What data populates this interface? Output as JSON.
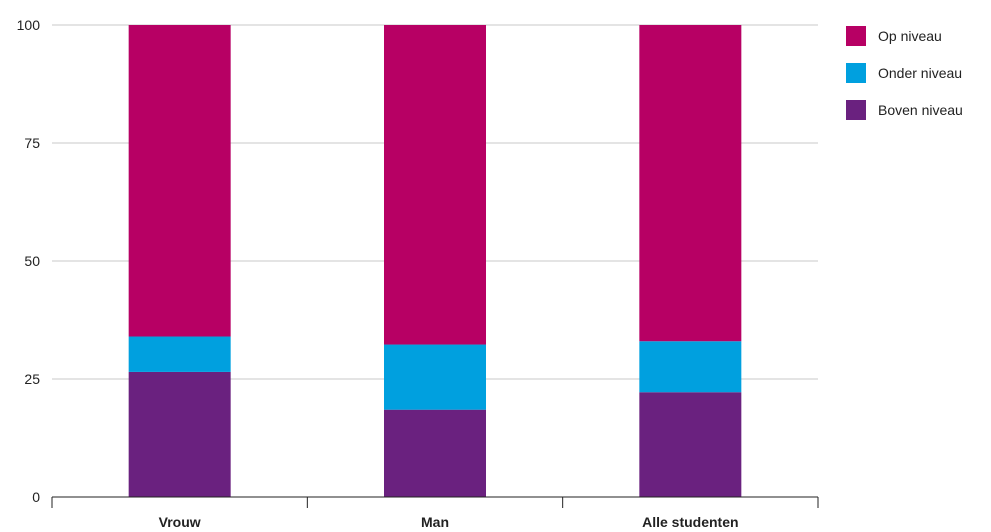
{
  "chart_data": {
    "type": "bar",
    "stacked": true,
    "categories": [
      "Vrouw",
      "Man",
      "Alle studenten"
    ],
    "series": [
      {
        "name": "Boven niveau",
        "color": "#6a217f",
        "values": [
          26.5,
          18.5,
          22.2
        ]
      },
      {
        "name": "Onder niveau",
        "color": "#00a0df",
        "values": [
          7.5,
          13.8,
          10.8
        ]
      },
      {
        "name": "Op niveau",
        "color": "#b70064",
        "values": [
          66.0,
          67.7,
          67.0
        ]
      }
    ],
    "legend_order": [
      "Op niveau",
      "Onder niveau",
      "Boven niveau"
    ],
    "title": "",
    "xlabel": "",
    "ylabel": "",
    "ylim": [
      0,
      100
    ],
    "yticks": [
      0,
      25,
      50,
      75,
      100
    ],
    "ytick_labels": [
      "0",
      "25",
      "50",
      "75",
      "100"
    ],
    "grid": true,
    "legend_position": "top-right"
  }
}
